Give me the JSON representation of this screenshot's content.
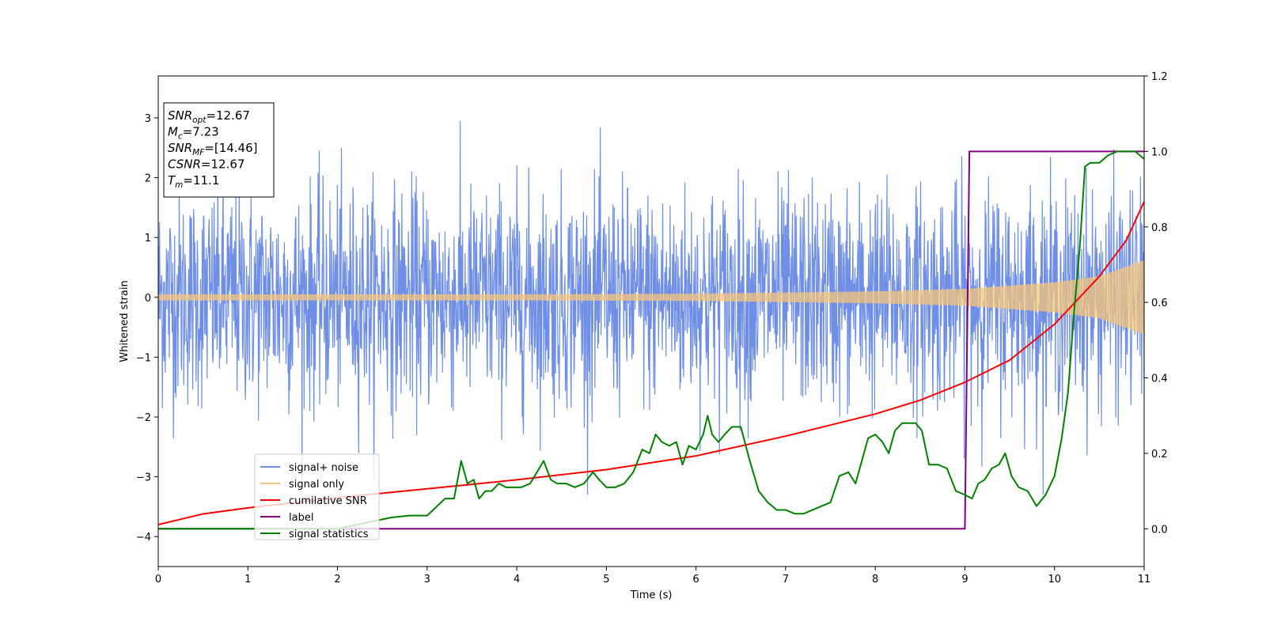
{
  "chart_data": {
    "type": "line",
    "xlabel": "Time (s)",
    "ylabel": "Whitened strain",
    "xlim": [
      0,
      11
    ],
    "ylim": [
      -4.5,
      3.7
    ],
    "y2lim": [
      -0.1,
      1.2
    ],
    "x_ticks": [
      "0",
      "1",
      "2",
      "3",
      "4",
      "5",
      "6",
      "7",
      "8",
      "9",
      "10",
      "11"
    ],
    "y_ticks": [
      "−4",
      "−3",
      "−2",
      "−1",
      "0",
      "1",
      "2",
      "3"
    ],
    "y2_ticks": [
      "0.0",
      "0.2",
      "0.4",
      "0.6",
      "0.8",
      "1.0",
      "1.2"
    ],
    "grid": false,
    "legend_position": "lower-left",
    "stats_box": {
      "position": "upper-left",
      "lines": [
        {
          "sym": "SNR",
          "sub": "opt",
          "value": "=12.67"
        },
        {
          "sym": "M",
          "sub": "c",
          "value": "=7.23"
        },
        {
          "sym": "SNR",
          "sub": "MF",
          "value": "=[14.46]"
        },
        {
          "sym": "CSNR",
          "sub": "",
          "value": "=12.67"
        },
        {
          "sym": "T",
          "sub": "m",
          "value": "=11.1"
        }
      ]
    },
    "series": [
      {
        "name": "signal+ noise",
        "color": "#6f8fe6",
        "axis": "left",
        "description_of_values": "noise band",
        "noise_sigma": 0.9,
        "noise_peak_max": 3.35,
        "noise_peak_min": -3.3
      },
      {
        "name": "signal only",
        "color": "#f5c57a",
        "axis": "left",
        "amplitude_envelope": {
          "x": [
            0,
            2,
            4,
            6,
            8,
            9,
            10,
            10.5,
            11
          ],
          "y": [
            0.05,
            0.05,
            0.05,
            0.06,
            0.1,
            0.14,
            0.25,
            0.35,
            0.62
          ]
        }
      },
      {
        "name": "cumilative SNR",
        "color": "#ff0000",
        "axis": "left",
        "x": [
          0,
          0.5,
          1,
          2,
          3,
          4,
          5,
          6,
          7,
          8,
          8.5,
          9,
          9.5,
          10,
          10.5,
          10.8,
          11
        ],
        "y": [
          -3.8,
          -3.62,
          -3.52,
          -3.35,
          -3.2,
          -3.05,
          -2.88,
          -2.65,
          -2.32,
          -1.95,
          -1.72,
          -1.42,
          -1.05,
          -0.45,
          0.35,
          0.95,
          1.6
        ]
      },
      {
        "name": "label",
        "color": "#800080",
        "axis": "right",
        "x": [
          0,
          9.0,
          9.05,
          11
        ],
        "y": [
          0,
          0,
          1,
          1
        ]
      },
      {
        "name": "signal statistics",
        "color": "#008000",
        "axis": "right",
        "x": [
          0,
          0.5,
          1,
          1.5,
          2,
          2.4,
          2.6,
          2.8,
          3.0,
          3.2,
          3.3,
          3.38,
          3.45,
          3.52,
          3.58,
          3.65,
          3.72,
          3.8,
          3.88,
          3.95,
          4.05,
          4.15,
          4.3,
          4.38,
          4.45,
          4.55,
          4.65,
          4.75,
          4.85,
          4.92,
          5.0,
          5.1,
          5.2,
          5.3,
          5.4,
          5.48,
          5.55,
          5.62,
          5.7,
          5.78,
          5.85,
          5.92,
          6.0,
          6.08,
          6.13,
          6.18,
          6.25,
          6.32,
          6.4,
          6.5,
          6.6,
          6.7,
          6.8,
          6.9,
          7.0,
          7.1,
          7.2,
          7.3,
          7.4,
          7.5,
          7.6,
          7.7,
          7.78,
          7.85,
          7.92,
          8.0,
          8.08,
          8.15,
          8.22,
          8.3,
          8.38,
          8.45,
          8.52,
          8.6,
          8.7,
          8.8,
          8.9,
          9.0,
          9.08,
          9.15,
          9.22,
          9.3,
          9.38,
          9.45,
          9.52,
          9.6,
          9.7,
          9.8,
          9.9,
          10.0,
          10.08,
          10.15,
          10.22,
          10.28,
          10.34,
          10.4,
          10.5,
          10.6,
          10.7,
          10.8,
          10.9,
          11.0
        ],
        "y": [
          0.0,
          0.0,
          0.0,
          0.0,
          0.0,
          0.02,
          0.03,
          0.035,
          0.035,
          0.08,
          0.08,
          0.18,
          0.12,
          0.13,
          0.08,
          0.1,
          0.1,
          0.12,
          0.11,
          0.11,
          0.11,
          0.12,
          0.18,
          0.13,
          0.12,
          0.12,
          0.11,
          0.12,
          0.15,
          0.13,
          0.11,
          0.11,
          0.12,
          0.15,
          0.21,
          0.2,
          0.25,
          0.23,
          0.22,
          0.23,
          0.17,
          0.22,
          0.21,
          0.25,
          0.3,
          0.25,
          0.23,
          0.25,
          0.27,
          0.27,
          0.18,
          0.1,
          0.07,
          0.05,
          0.05,
          0.04,
          0.04,
          0.05,
          0.06,
          0.07,
          0.14,
          0.15,
          0.12,
          0.18,
          0.24,
          0.25,
          0.23,
          0.2,
          0.26,
          0.28,
          0.28,
          0.28,
          0.26,
          0.17,
          0.17,
          0.16,
          0.1,
          0.09,
          0.08,
          0.12,
          0.13,
          0.16,
          0.17,
          0.2,
          0.14,
          0.11,
          0.1,
          0.06,
          0.09,
          0.14,
          0.24,
          0.36,
          0.58,
          0.74,
          0.96,
          0.97,
          0.97,
          0.99,
          1.0,
          1.0,
          1.0,
          0.98
        ]
      }
    ]
  }
}
